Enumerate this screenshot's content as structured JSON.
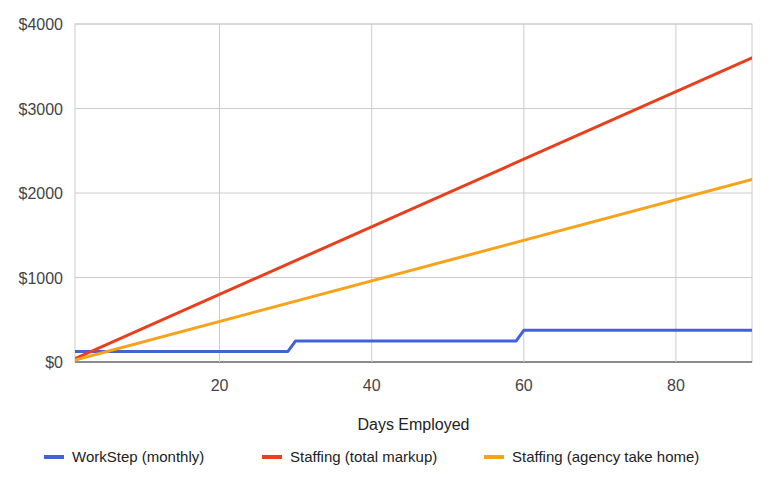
{
  "chart_data": {
    "type": "line",
    "x_label": "Days Employed",
    "xlim": [
      1,
      90
    ],
    "xticks": [
      20,
      40,
      60,
      80
    ],
    "ylim": [
      0,
      4000
    ],
    "yticks": [
      {
        "value": 0,
        "label": "$0"
      },
      {
        "value": 1000,
        "label": "$1000"
      },
      {
        "value": 2000,
        "label": "$2000"
      },
      {
        "value": 3000,
        "label": "$3000"
      },
      {
        "value": 4000,
        "label": "$4000"
      }
    ],
    "grid": true,
    "legend": "bottom",
    "series": [
      {
        "name": "WorkStep (monthly)",
        "color": "#4263d8",
        "x": [
          1,
          29,
          30,
          59,
          60,
          90
        ],
        "values": [
          125,
          125,
          250,
          250,
          375,
          375
        ]
      },
      {
        "name": "Staffing (total markup)",
        "color": "#e8401c",
        "x": [
          1,
          90
        ],
        "values": [
          40,
          3600
        ]
      },
      {
        "name": "Staffing (agency take home)",
        "color": "#f7a21b",
        "x": [
          1,
          90
        ],
        "values": [
          24,
          2160
        ]
      }
    ]
  }
}
